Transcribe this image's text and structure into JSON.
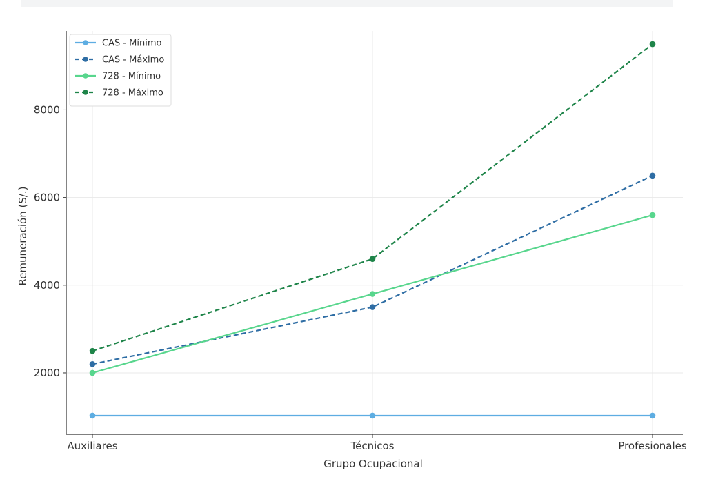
{
  "chart_data": {
    "type": "line",
    "title": "",
    "xlabel": "Grupo Ocupacional",
    "ylabel": "Remuneración (S/.)",
    "categories": [
      "Auxiliares",
      "Técnicos",
      "Profesionales"
    ],
    "ylim": [
      600,
      9800
    ],
    "yticks": [
      2000,
      4000,
      6000,
      8000
    ],
    "grid": true,
    "legend_position": "top-left",
    "series": [
      {
        "name": "CAS - Mínimo",
        "values": [
          1025,
          1025,
          1025
        ],
        "color": "#5dade2",
        "style": "solid"
      },
      {
        "name": "CAS - Máximo",
        "values": [
          2200,
          3500,
          6500
        ],
        "color": "#2e6da4",
        "style": "dashed"
      },
      {
        "name": "728 - Mínimo",
        "values": [
          2000,
          3800,
          5600
        ],
        "color": "#58d68d",
        "style": "solid"
      },
      {
        "name": "728 - Máximo",
        "values": [
          2500,
          4600,
          9500
        ],
        "color": "#1e8449",
        "style": "dashed"
      }
    ]
  }
}
